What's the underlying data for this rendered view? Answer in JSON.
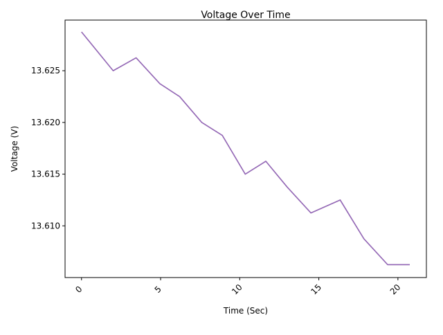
{
  "chart_data": {
    "type": "line",
    "title": "Voltage Over Time",
    "xlabel": "Time (Sec)",
    "ylabel": "Voltage (V)",
    "xlim": [
      -1.04,
      21.8
    ],
    "ylim": [
      13.605,
      13.6299
    ],
    "x_ticks": [
      0,
      5,
      10,
      15,
      20
    ],
    "x_tick_labels": [
      "0",
      "5",
      "10",
      "15",
      "20"
    ],
    "y_ticks": [
      13.61,
      13.615,
      13.62,
      13.625
    ],
    "y_tick_labels": [
      "13.610",
      "13.615",
      "13.620",
      "13.625"
    ],
    "grid": false,
    "legend": "none",
    "series": [
      {
        "color": "#9467bd",
        "x": [
          0,
          2.0,
          3.45,
          4.95,
          6.2,
          7.6,
          8.9,
          10.35,
          11.65,
          13.0,
          14.5,
          16.35,
          17.85,
          19.35,
          20.75
        ],
        "y": [
          13.62875,
          13.625,
          13.62625,
          13.62375,
          13.6225,
          13.62,
          13.61875,
          13.615,
          13.61625,
          13.61375,
          13.61125,
          13.6125,
          13.60875,
          13.60625,
          13.60625
        ]
      },
      {
        "color": "#8c6d60",
        "x": [
          0,
          2.0,
          3.45,
          4.95,
          6.2,
          7.6,
          8.9,
          10.35,
          11.65,
          13.0,
          14.5,
          16.35,
          17.85,
          19.35,
          20.75
        ],
        "y": [
          13.62875,
          13.625,
          13.62625,
          13.62375,
          13.6225,
          13.62,
          13.61875,
          13.615,
          13.61625,
          13.61375,
          13.61125,
          13.6125,
          13.60875,
          13.60625,
          13.60625
        ]
      }
    ]
  }
}
